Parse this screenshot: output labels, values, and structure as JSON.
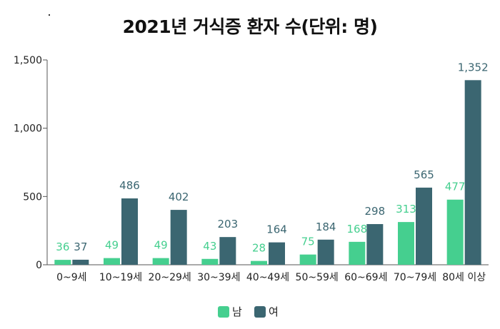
{
  "chart_data": {
    "type": "bar",
    "title": "2021년 거식증 환자 수(단위: 명)",
    "categories": [
      "0~9세",
      "10~19세",
      "20~29세",
      "30~39세",
      "40~49세",
      "50~59세",
      "60~69세",
      "70~79세",
      "80세 이상"
    ],
    "series": [
      {
        "name": "남",
        "color": "#45cf8f",
        "values": [
          36,
          49,
          49,
          43,
          28,
          75,
          168,
          313,
          477
        ]
      },
      {
        "name": "여",
        "color": "#3b6671",
        "values": [
          37,
          486,
          402,
          203,
          164,
          184,
          298,
          565,
          1352
        ]
      }
    ],
    "ylim": [
      0,
      1500
    ],
    "yticks": [
      0,
      500,
      1000,
      1500
    ],
    "ytick_labels": [
      "0",
      "500",
      "1,000",
      "1,500"
    ],
    "grid": false,
    "legend_position": "bottom"
  }
}
